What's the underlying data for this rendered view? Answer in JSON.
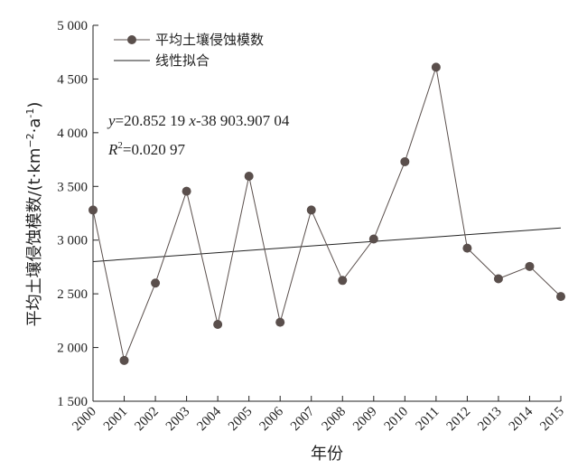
{
  "chart_data": {
    "type": "line",
    "xlabel": "年份",
    "ylabel_main": "平均土壤侵蚀模数/(t·km",
    "ylabel_exp1": "−2",
    "ylabel_mid": "·a",
    "ylabel_exp2": "-1",
    "ylabel_end": ")",
    "ylim": [
      1500,
      5000
    ],
    "yticks": [
      1500,
      2000,
      2500,
      3000,
      3500,
      4000,
      4500,
      5000
    ],
    "ytick_labels": [
      "1 500",
      "2 000",
      "2 500",
      "3 000",
      "3 500",
      "4 000",
      "4 500",
      "5 000"
    ],
    "categories": [
      "2000",
      "2001",
      "2002",
      "2003",
      "2004",
      "2005",
      "2006",
      "2007",
      "2008",
      "2009",
      "2010",
      "2011",
      "2012",
      "2013",
      "2014",
      "2015"
    ],
    "series": [
      {
        "name": "平均土壤侵蚀模数",
        "values": [
          3280,
          1880,
          2600,
          3455,
          2215,
          3595,
          2235,
          3280,
          2625,
          3010,
          3730,
          4610,
          2925,
          2640,
          2755,
          2475
        ],
        "color": "#5a4f4c"
      },
      {
        "name": "线性拟合",
        "start": 2800,
        "end": 3113,
        "color": "#222222"
      }
    ],
    "equation": {
      "line1_y": "y",
      "line1_mid": "=20.852 19 ",
      "line1_x": "x",
      "line1_end": "-38 903.907 04",
      "line2_r": "R",
      "line2_exp": "2",
      "line2_end": "=0.020 97"
    },
    "legend_position": "top-left",
    "grid": false
  }
}
